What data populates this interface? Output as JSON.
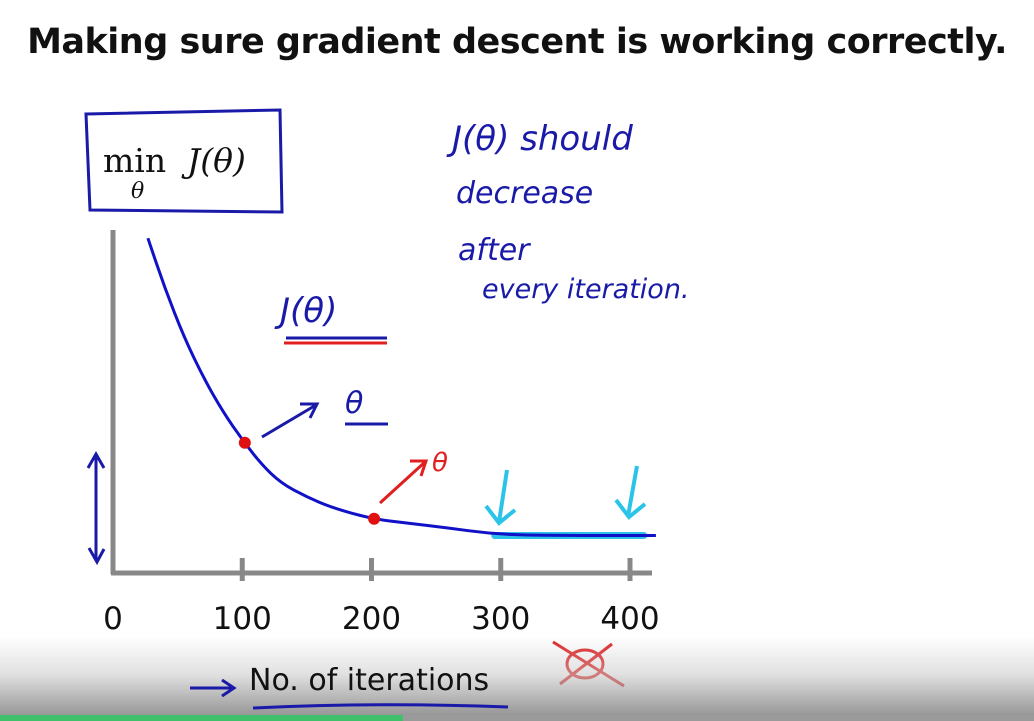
{
  "slide": {
    "title": "Making sure gradient descent is working correctly."
  },
  "annotations": {
    "objective": "min J(θ)",
    "objective_parts": {
      "op": "min",
      "sub": "θ",
      "fn": "J(θ)"
    },
    "note_lines": [
      "J(θ) should",
      "decrease",
      "after",
      "every iteration."
    ],
    "curve_label": "J(θ)",
    "theta_1": "θ",
    "theta_2": "θ"
  },
  "colors": {
    "curve": "#1111c8",
    "points": "#e01010",
    "flat_highlight": "#2bc4e8",
    "axis": "#888888",
    "handwriting": "#1a1aa8",
    "red_ink": "#e02020",
    "progress": "#3fc06a"
  },
  "player": {
    "progress": 0.39
  },
  "chart_data": {
    "type": "line",
    "title": "",
    "xlabel": "No. of iterations",
    "ylabel": "J(θ)",
    "xlim": [
      0,
      420
    ],
    "ylim": [
      0,
      1
    ],
    "xticks": [
      0,
      100,
      200,
      300,
      400
    ],
    "grid": false,
    "series": [
      {
        "name": "J(θ)",
        "x": [
          27,
          40,
          55,
          70,
          85,
          100,
          115,
          130,
          150,
          170,
          200,
          230,
          260,
          290,
          320,
          350,
          380,
          410,
          420
        ],
        "y": [
          0.98,
          0.82,
          0.66,
          0.53,
          0.42,
          0.33,
          0.25,
          0.19,
          0.145,
          0.11,
          0.075,
          0.06,
          0.045,
          0.028,
          0.022,
          0.021,
          0.021,
          0.021,
          0.021
        ]
      }
    ],
    "highlighted_points": [
      {
        "x": 102,
        "y": 0.32
      },
      {
        "x": 202,
        "y": 0.075
      }
    ],
    "highlighted_range": [
      300,
      420
    ]
  }
}
